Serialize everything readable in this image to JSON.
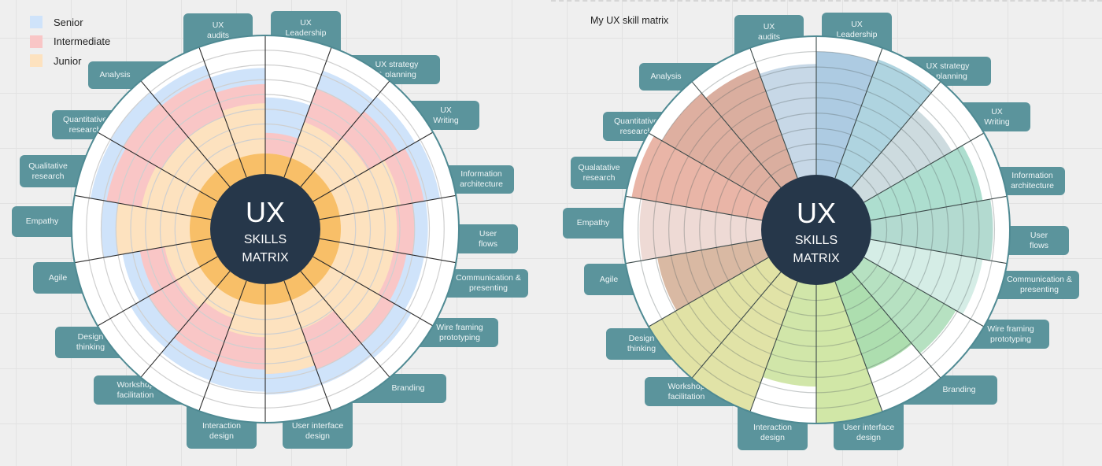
{
  "left": {
    "legend": [
      {
        "label": "Senior",
        "color": "#cfe3fa"
      },
      {
        "label": "Intermediate",
        "color": "#f9c6c6"
      },
      {
        "label": "Junior",
        "color": "#fde2bf"
      }
    ],
    "core_color": "#f8bf68",
    "center": {
      "line1": "UX",
      "line2": "SKILLS",
      "line3": "MATRIX"
    },
    "skills": [
      {
        "label": "UX\nLeadership",
        "junior": 0,
        "intermediate": 1.4,
        "senior": 3.8
      },
      {
        "label": "UX strategy\n& planning",
        "junior": 2.6,
        "intermediate": 5,
        "senior": 6.3
      },
      {
        "label": "UX\nWriting",
        "junior": 2.9,
        "intermediate": 5.3,
        "senior": 6.6
      },
      {
        "label": "Information\narchitecture",
        "junior": 4.2,
        "intermediate": 5.8,
        "senior": 6.9
      },
      {
        "label": "User\nflows",
        "junior": 3.8,
        "intermediate": 5,
        "senior": 5.9
      },
      {
        "label": "Communication &\npresenting",
        "junior": 3.7,
        "intermediate": 4.6,
        "senior": 5.8
      },
      {
        "label": "Wire framing\nprototyping",
        "junior": 4,
        "intermediate": 5,
        "senior": 6.3
      },
      {
        "label": "Branding",
        "junior": 2.1,
        "intermediate": 5,
        "senior": 6.1
      },
      {
        "label": "User interface\ndesign",
        "junior": 4.7,
        "intermediate": 4.7,
        "senior": 6.1
      },
      {
        "label": "Interaction\ndesign",
        "junior": 2.2,
        "intermediate": 4.4,
        "senior": 5.9
      },
      {
        "label": "Workshop\nfacilitation",
        "junior": 1.3,
        "intermediate": 4.5,
        "senior": 5.8
      },
      {
        "label": "Design\nthinking",
        "junior": 1.8,
        "intermediate": 4,
        "senior": 5.4
      },
      {
        "label": "Agile",
        "junior": 1.8,
        "intermediate": 3.5,
        "senior": 4.7
      },
      {
        "label": "Empathy",
        "junior": 5,
        "intermediate": 5,
        "senior": 6
      },
      {
        "label": "Qualitative\nresearch",
        "junior": 3.4,
        "intermediate": 5.8,
        "senior": 6.9
      },
      {
        "label": "Quantitative\nresearch",
        "junior": 3,
        "intermediate": 6,
        "senior": 7
      },
      {
        "label": "Analysis",
        "junior": 3,
        "intermediate": 5.8,
        "senior": 6.7
      },
      {
        "label": "UX\naudits",
        "junior": 3.4,
        "intermediate": 4.7,
        "senior": 5.8
      }
    ]
  },
  "right": {
    "title": "My UX skill matrix",
    "center": {
      "line1": "UX",
      "line2": "SKILLS",
      "line3": "MATRIX"
    },
    "skills": [
      {
        "label": "UX\nLeadership",
        "level": 8,
        "color": "#a9c8e0"
      },
      {
        "label": "UX strategy\n& planning",
        "level": 8.2,
        "color": "#abd2de"
      },
      {
        "label": "UX\nWriting",
        "level": 6.6,
        "color": "#cad9dd"
      },
      {
        "label": "Information\narchitecture",
        "level": 7.4,
        "color": "#a9dccc"
      },
      {
        "label": "User\nflows",
        "level": 7.9,
        "color": "#afd8cd"
      },
      {
        "label": "Communication &\npresenting",
        "level": 7.4,
        "color": "#d3ece5"
      },
      {
        "label": "Wire framing\nprototyping",
        "level": 6.9,
        "color": "#b2dfbe"
      },
      {
        "label": "Branding",
        "level": 6.1,
        "color": "#a9dcab"
      },
      {
        "label": "User interface\ndesign",
        "level": 9,
        "color": "#cfe6a2"
      },
      {
        "label": "Interaction\ndesign",
        "level": 6.6,
        "color": "#cfe5a4"
      },
      {
        "label": "Workshop\nfacilitation",
        "level": 9,
        "color": "#dfe1a2"
      },
      {
        "label": "Design\nthinking",
        "level": 9,
        "color": "#dfe0a0"
      },
      {
        "label": "Agile",
        "level": 6.9,
        "color": "#d7b59e"
      },
      {
        "label": "Empathy",
        "level": 7.9,
        "color": "#edd8d3"
      },
      {
        "label": "Qualatative\nresearch",
        "level": 8.6,
        "color": "#e8b1a2"
      },
      {
        "label": "Quantitative\nresearch",
        "level": 8,
        "color": "#dcab9b"
      },
      {
        "label": "Analysis",
        "level": 7.6,
        "color": "#d8aa9a"
      },
      {
        "label": "UX\naudits",
        "level": 7.2,
        "color": "#c4d6e6"
      }
    ]
  }
}
